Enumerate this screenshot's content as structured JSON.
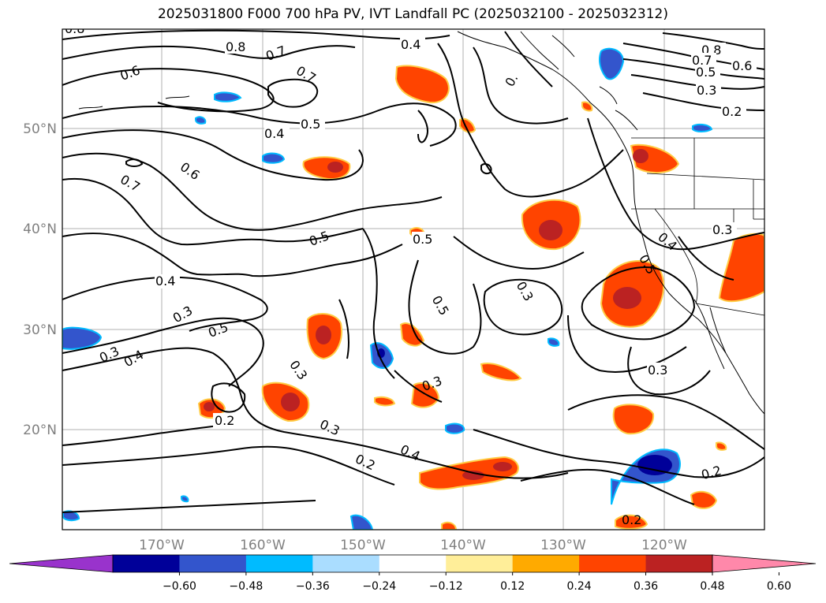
{
  "title": "2025031800 F000 700 hPa PV, IVT Landfall PC (2025032100 - 2025032312)",
  "map": {
    "lat_labels": [
      "50°N",
      "40°N",
      "30°N",
      "20°N"
    ],
    "lon_labels": [
      "170°W",
      "160°W",
      "150°W",
      "140°W",
      "130°W",
      "120°W"
    ],
    "contour_labels": [
      "0.8",
      "0.7",
      "0.4",
      "0.6",
      "0.7",
      "0.5",
      "0.4",
      "0.6",
      "0.7",
      "0.5",
      "0.4",
      "0.3",
      "0.5",
      "0.3",
      "0.4",
      "0.3",
      "0.2",
      "0.3",
      "0.5",
      "0.5",
      "0.3",
      "0.3",
      "0.4",
      "0.2",
      "0.8",
      "0.7",
      "0.6",
      "0.5",
      "0.3",
      "0.2",
      "0.3",
      "0.4",
      "0.5",
      "0.3",
      "0.2",
      "0.2"
    ]
  },
  "colorbar": {
    "tick_labels": [
      "−0.60",
      "−0.48",
      "−0.36",
      "−0.24",
      "−0.12",
      "0.12",
      "0.24",
      "0.36",
      "0.48",
      "0.60"
    ],
    "colors": [
      "#9933cc",
      "#000099",
      "#3355cc",
      "#00bbff",
      "#aaddff",
      "#ffffff",
      "#ffee99",
      "#ffaa00",
      "#ff4400",
      "#bb2222",
      "#ff88aa"
    ]
  }
}
